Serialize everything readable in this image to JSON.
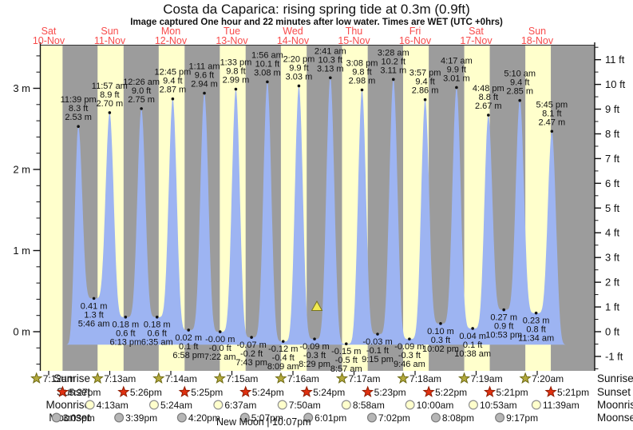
{
  "title": "Costa da Caparica: rising  spring tide at 0.3m (0.9ft)",
  "subtitle": "Image captured One hour and 22 minutes after low water. Times are WET (UTC +0hrs)",
  "colors": {
    "daylight_band": "#ffffcc",
    "night_band": "#9c9c9c",
    "tide_fill": "#9db4f2",
    "day_label": "#f84b4b",
    "text": "#111111",
    "axis": "#333333",
    "sunrise_icon": "#b3a93c",
    "sunrise_icon_border": "#6e6a14",
    "sunset_icon": "#e03010",
    "sunset_icon_border": "#8e1c02",
    "moonrise_icon": "#ffffcc",
    "moonrise_icon_border": "#8f8f8f",
    "moonset_icon": "#b6b6b6",
    "moonset_icon_border": "#7d7d7d",
    "marker": "#f2ea51",
    "marker_border": "#77741f"
  },
  "chart_data": {
    "type": "area",
    "title": "Costa da Caparica: rising  spring tide at 0.3m (0.9ft)",
    "subtitle": "Image captured One hour and 22 minutes after low water. Times are WET (UTC +0hrs)",
    "y_axis_left": {
      "unit": "m",
      "major_ticks": [
        0,
        1,
        2,
        3
      ],
      "minor_step": 0.2,
      "range": [
        -0.48,
        3.53
      ]
    },
    "y_axis_right": {
      "unit": "ft",
      "major_ticks": [
        -1,
        0,
        1,
        2,
        3,
        4,
        5,
        6,
        7,
        8,
        9,
        10,
        11
      ],
      "minor_step": 0.5
    },
    "days": [
      {
        "name": "Sat",
        "date": "10-Nov"
      },
      {
        "name": "Sun",
        "date": "11-Nov"
      },
      {
        "name": "Mon",
        "date": "12-Nov"
      },
      {
        "name": "Tue",
        "date": "13-Nov"
      },
      {
        "name": "Wed",
        "date": "14-Nov"
      },
      {
        "name": "Thu",
        "date": "15-Nov"
      },
      {
        "name": "Fri",
        "date": "16-Nov"
      },
      {
        "name": "Sat",
        "date": "17-Nov"
      },
      {
        "name": "Sun",
        "date": "18-Nov"
      }
    ],
    "tide_events": [
      {
        "type": "high",
        "day": 0,
        "time": "11:39 pm",
        "ft": "8.3 ft",
        "m": "2.53 m",
        "h": 2.53
      },
      {
        "type": "low",
        "day": 1,
        "time": "5:46 am",
        "ft": "1.3 ft",
        "m": "0.41 m",
        "h": 0.41
      },
      {
        "type": "high",
        "day": 1,
        "time": "11:57 am",
        "ft": "8.9 ft",
        "m": "2.70 m",
        "h": 2.7
      },
      {
        "type": "low",
        "day": 1,
        "time": "6:13 pm",
        "ft": "0.6 ft",
        "m": "0.18 m",
        "h": 0.18
      },
      {
        "type": "high",
        "day": 2,
        "time": "12:26 am",
        "ft": "9.0 ft",
        "m": "2.75 m",
        "h": 2.75
      },
      {
        "type": "low",
        "day": 2,
        "time": "6:35 am",
        "ft": "0.6 ft",
        "m": "0.18 m",
        "h": 0.18
      },
      {
        "type": "high",
        "day": 2,
        "time": "12:45 pm",
        "ft": "9.4 ft",
        "m": "2.87 m",
        "h": 2.87
      },
      {
        "type": "low",
        "day": 2,
        "time": "6:58 pm",
        "ft": "0.1 ft",
        "m": "0.02 m",
        "h": 0.02
      },
      {
        "type": "high",
        "day": 3,
        "time": "1:11 am",
        "ft": "9.6 ft",
        "m": "2.94 m",
        "h": 2.94
      },
      {
        "type": "low",
        "day": 3,
        "time": "7:22 am",
        "ft": "-0.0 ft",
        "m": "-0.00 m",
        "h": -0.001
      },
      {
        "type": "high",
        "day": 3,
        "time": "1:33 pm",
        "ft": "9.8 ft",
        "m": "2.99 m",
        "h": 2.99
      },
      {
        "type": "low",
        "day": 3,
        "time": "7:43 pm",
        "ft": "-0.2 ft",
        "m": "-0.07 m",
        "h": -0.07
      },
      {
        "type": "high",
        "day": 4,
        "time": "1:56 am",
        "ft": "10.1 ft",
        "m": "3.08 m",
        "h": 3.08
      },
      {
        "type": "low",
        "day": 4,
        "time": "8:09 am",
        "ft": "-0.4 ft",
        "m": "-0.12 m",
        "h": -0.12
      },
      {
        "type": "high",
        "day": 4,
        "time": "2:20 pm",
        "ft": "9.9 ft",
        "m": "3.03 m",
        "h": 3.03
      },
      {
        "type": "low",
        "day": 4,
        "time": "8:29 pm",
        "ft": "-0.3 ft",
        "m": "-0.09 m",
        "h": -0.09
      },
      {
        "type": "high",
        "day": 5,
        "time": "2:41 am",
        "ft": "10.3 ft",
        "m": "3.13 m",
        "h": 3.13
      },
      {
        "type": "low",
        "day": 5,
        "time": "8:57 am",
        "ft": "-0.5 ft",
        "m": "-0.15 m",
        "h": -0.15
      },
      {
        "type": "high",
        "day": 5,
        "time": "3:08 pm",
        "ft": "9.8 ft",
        "m": "2.98 m",
        "h": 2.98
      },
      {
        "type": "low",
        "day": 5,
        "time": "9:15 pm",
        "ft": "-0.1 ft",
        "m": "-0.03 m",
        "h": -0.03
      },
      {
        "type": "high",
        "day": 6,
        "time": "3:28 am",
        "ft": "10.2 ft",
        "m": "3.11 m",
        "h": 3.11
      },
      {
        "type": "low",
        "day": 6,
        "time": "9:46 am",
        "ft": "-0.3 ft",
        "m": "-0.09 m",
        "h": -0.09
      },
      {
        "type": "high",
        "day": 6,
        "time": "3:57 pm",
        "ft": "9.4 ft",
        "m": "2.86 m",
        "h": 2.86
      },
      {
        "type": "low",
        "day": 6,
        "time": "10:02 pm",
        "ft": "0.3 ft",
        "m": "0.10 m",
        "h": 0.1
      },
      {
        "type": "high",
        "day": 7,
        "time": "4:17 am",
        "ft": "9.9 ft",
        "m": "3.01 m",
        "h": 3.01
      },
      {
        "type": "low",
        "day": 7,
        "time": "10:38 am",
        "ft": "0.1 ft",
        "m": "0.04 m",
        "h": 0.04
      },
      {
        "type": "high",
        "day": 7,
        "time": "4:48 pm",
        "ft": "8.8 ft",
        "m": "2.67 m",
        "h": 2.67
      },
      {
        "type": "low",
        "day": 7,
        "time": "10:53 pm",
        "ft": "0.9 ft",
        "m": "0.27 m",
        "h": 0.27
      },
      {
        "type": "high",
        "day": 8,
        "time": "5:10 am",
        "ft": "9.4 ft",
        "m": "2.85 m",
        "h": 2.85
      },
      {
        "type": "low",
        "day": 8,
        "time": "11:34 am",
        "ft": "0.8 ft",
        "m": "0.23 m",
        "h": 0.23
      },
      {
        "type": "high",
        "day": 8,
        "time": "5:45 pm",
        "ft": "8.1 ft",
        "m": "2.47 m",
        "h": 2.47
      }
    ]
  },
  "astro": {
    "sunrise": {
      "label": "Sunrise",
      "events": [
        {
          "day": 0,
          "time": "7:12am"
        },
        {
          "day": 1,
          "time": "7:13am"
        },
        {
          "day": 2,
          "time": "7:14am"
        },
        {
          "day": 3,
          "time": "7:15am"
        },
        {
          "day": 4,
          "time": "7:16am"
        },
        {
          "day": 5,
          "time": "7:17am"
        },
        {
          "day": 6,
          "time": "7:18am"
        },
        {
          "day": 7,
          "time": "7:19am"
        },
        {
          "day": 8,
          "time": "7:20am"
        }
      ]
    },
    "sunset": {
      "label": "Sunset",
      "events": [
        {
          "day": 0,
          "time": "5:27pm"
        },
        {
          "day": 1,
          "time": "5:26pm"
        },
        {
          "day": 2,
          "time": "5:25pm"
        },
        {
          "day": 3,
          "time": "5:24pm"
        },
        {
          "day": 4,
          "time": "5:24pm"
        },
        {
          "day": 5,
          "time": "5:23pm"
        },
        {
          "day": 6,
          "time": "5:22pm"
        },
        {
          "day": 7,
          "time": "5:21pm"
        },
        {
          "day": 8,
          "time": "5:21pm"
        }
      ]
    },
    "moonrise": {
      "label": "Moonrise",
      "events": [
        {
          "day": 1,
          "time": "4:13am"
        },
        {
          "day": 2,
          "time": "5:24am"
        },
        {
          "day": 3,
          "time": "6:37am"
        },
        {
          "day": 4,
          "time": "7:50am"
        },
        {
          "day": 5,
          "time": "8:58am"
        },
        {
          "day": 6,
          "time": "10:00am"
        },
        {
          "day": 7,
          "time": "10:53am"
        },
        {
          "day": 8,
          "time": "11:39am"
        }
      ]
    },
    "moonset": {
      "label": "Moonset",
      "events": [
        {
          "day": 0,
          "time": "3:03pm"
        },
        {
          "day": 1,
          "time": "3:39pm"
        },
        {
          "day": 2,
          "time": "4:20pm"
        },
        {
          "day": 3,
          "time": "5:07pm"
        },
        {
          "day": 4,
          "time": "6:01pm"
        },
        {
          "day": 5,
          "time": "7:02pm"
        },
        {
          "day": 6,
          "time": "8:08pm"
        },
        {
          "day": 7,
          "time": "9:17pm"
        }
      ]
    }
  },
  "new_moon_label": "New Moon | 10:07pm"
}
